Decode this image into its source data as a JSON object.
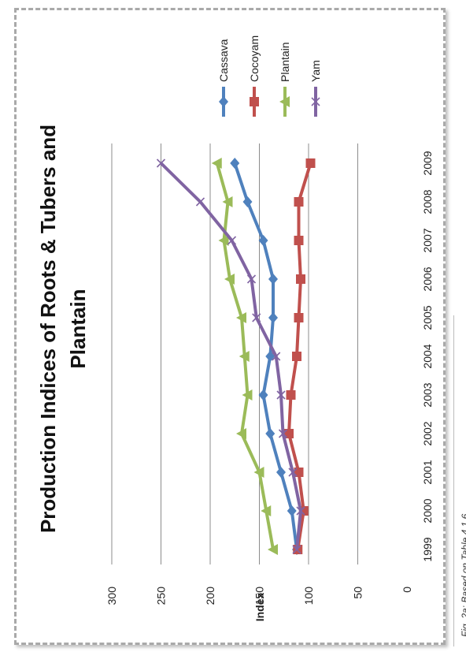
{
  "chart_data": {
    "type": "line",
    "title_lines": [
      "Production Indices of Roots & Tubers and",
      "Plantain"
    ],
    "xlabel": "",
    "ylabel": "Index",
    "categories": [
      "1999",
      "2000",
      "2001",
      "2002",
      "2003",
      "2004",
      "2005",
      "2006",
      "2007",
      "2008",
      "2009"
    ],
    "yticks": [
      0,
      50,
      100,
      150,
      200,
      250,
      300
    ],
    "ylim": [
      0,
      300
    ],
    "grid": true,
    "legend_position": "right",
    "series": [
      {
        "name": "Cassava",
        "color": "#4f81bd",
        "marker": "diamond",
        "values": [
          112,
          117,
          128,
          139,
          146,
          139,
          136,
          136,
          146,
          162,
          175
        ]
      },
      {
        "name": "Cocoyam",
        "color": "#c0504d",
        "marker": "square",
        "values": [
          111,
          105,
          110,
          120,
          118,
          112,
          110,
          108,
          110,
          110,
          98
        ]
      },
      {
        "name": "Plantain",
        "color": "#9bbb59",
        "marker": "triangle",
        "values": [
          136,
          143,
          150,
          168,
          162,
          165,
          168,
          180,
          186,
          182,
          193
        ]
      },
      {
        "name": "Yam",
        "color": "#8064a2",
        "marker": "x",
        "values": [
          112,
          108,
          116,
          126,
          128,
          133,
          153,
          158,
          178,
          210,
          250
        ]
      }
    ]
  },
  "caption": "Fig. 2a: Based on Table 4.1.6"
}
